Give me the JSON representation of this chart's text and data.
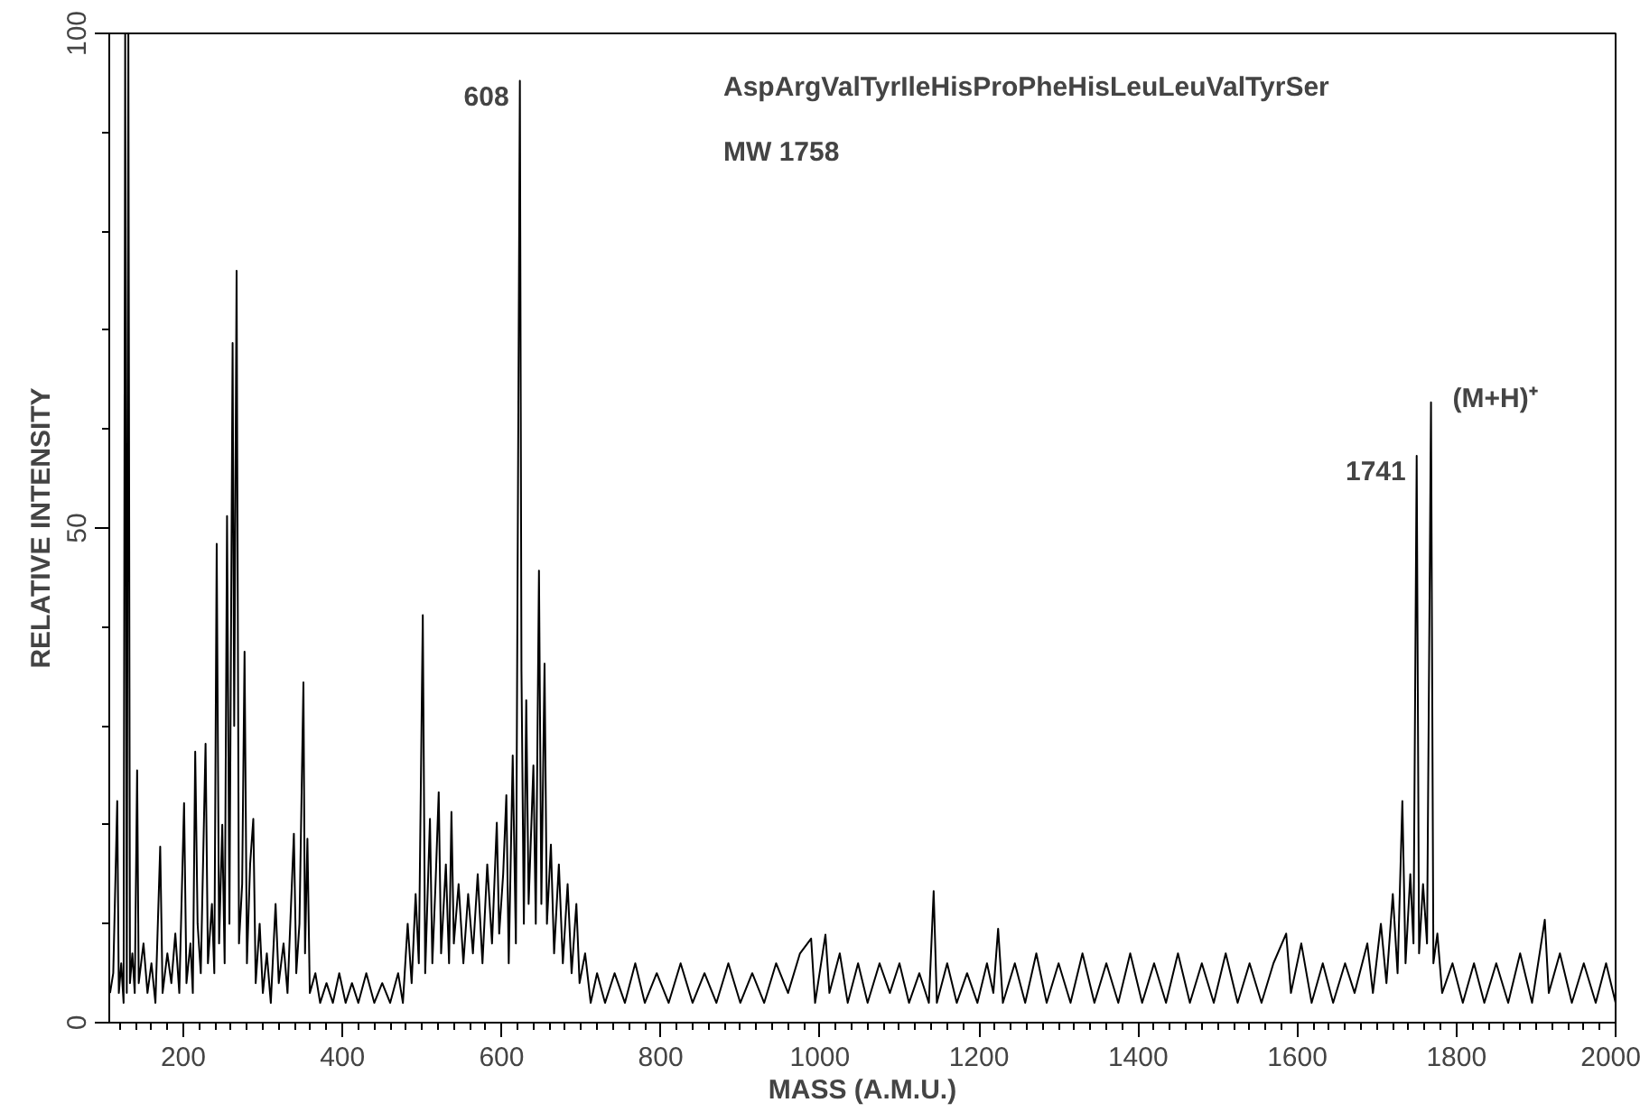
{
  "chart_data": {
    "type": "line",
    "title": "AspArgValTyrIleHisProPheHisLeuLeuValTyrSer",
    "xlabel": "MASS (A.M.U.)",
    "ylabel": "RELATIVE INTENSITY",
    "annotations": [
      "MW 1758",
      {
        "text": "608",
        "x": 623,
        "y": 95.2
      },
      {
        "text": "1741",
        "x": 1750,
        "y": 57.3
      },
      {
        "text": "(M+H)⁺",
        "x": 1768,
        "y": 62.7
      }
    ],
    "xlim": [
      107,
      2000
    ],
    "ylim": [
      0,
      100
    ],
    "xticks": [
      200,
      400,
      600,
      800,
      1000,
      1200,
      1400,
      1600,
      1800,
      2000
    ],
    "yticks": [
      0,
      50,
      100
    ],
    "grid": false,
    "marker": "none",
    "line_style": "solid",
    "series": [
      {
        "color": "#000000",
        "x": [
          108,
          112,
          117,
          119,
          122,
          125,
          127,
          129,
          131,
          133,
          136,
          139,
          142,
          144,
          150,
          155,
          160,
          165,
          171,
          174,
          180,
          185,
          190,
          195,
          201,
          204,
          209,
          212,
          215,
          218,
          222,
          228,
          231,
          236,
          239,
          242,
          245,
          249,
          252,
          255,
          258,
          262,
          264,
          267,
          270,
          274,
          277,
          280,
          284,
          288,
          291,
          296,
          300,
          305,
          310,
          316,
          320,
          326,
          331,
          339,
          342,
          346,
          351,
          353,
          356,
          359,
          366,
          372,
          380,
          388,
          396,
          404,
          412,
          420,
          430,
          440,
          450,
          460,
          470,
          476,
          482,
          487,
          492,
          496,
          501,
          504,
          510,
          513,
          517,
          521,
          524,
          530,
          534,
          537,
          540,
          546,
          552,
          558,
          564,
          570,
          576,
          582,
          588,
          594,
          597,
          602,
          606,
          609,
          614,
          618,
          623,
          625,
          628,
          631,
          634,
          640,
          643,
          647,
          650,
          654,
          657,
          662,
          666,
          672,
          677,
          683,
          688,
          694,
          698,
          705,
          712,
          720,
          730,
          742,
          755,
          768,
          780,
          795,
          810,
          825,
          840,
          855,
          870,
          885,
          900,
          915,
          930,
          945,
          960,
          975,
          989,
          994,
          1007,
          1012,
          1025,
          1035,
          1048,
          1060,
          1075,
          1088,
          1100,
          1112,
          1125,
          1137,
          1143,
          1147,
          1160,
          1172,
          1185,
          1198,
          1210,
          1218,
          1224,
          1230,
          1245,
          1258,
          1272,
          1285,
          1300,
          1315,
          1330,
          1345,
          1360,
          1375,
          1390,
          1405,
          1420,
          1435,
          1450,
          1465,
          1480,
          1495,
          1510,
          1525,
          1540,
          1555,
          1570,
          1586,
          1592,
          1605,
          1618,
          1632,
          1645,
          1660,
          1672,
          1688,
          1695,
          1705,
          1712,
          1720,
          1726,
          1732,
          1736,
          1742,
          1746,
          1750,
          1753,
          1758,
          1763,
          1768,
          1771,
          1776,
          1782,
          1795,
          1808,
          1822,
          1835,
          1850,
          1865,
          1880,
          1895,
          1911,
          1916,
          1930,
          1945,
          1960,
          1975,
          1988,
          2000
        ],
        "values": [
          3,
          5,
          22.4,
          3,
          6,
          2,
          100,
          3,
          100,
          4,
          7,
          3,
          25.5,
          4,
          8,
          3,
          6,
          2,
          17.8,
          3,
          7,
          4,
          9,
          3,
          22.2,
          4,
          8,
          3,
          27.4,
          10,
          5,
          28.2,
          6,
          12,
          5,
          48.4,
          8,
          20,
          6,
          51.2,
          10,
          68.7,
          30,
          76,
          8,
          14,
          37.5,
          6,
          16,
          20.6,
          4,
          10,
          3,
          7,
          2,
          12,
          4,
          8,
          3,
          19.1,
          5,
          10,
          34.4,
          7,
          18.6,
          3,
          5,
          2,
          4,
          2,
          5,
          2,
          4,
          2,
          5,
          2,
          4,
          2,
          5,
          2,
          10,
          4,
          13,
          6,
          41.2,
          5,
          20.6,
          6,
          14,
          23.3,
          7,
          16,
          6,
          21.3,
          8,
          14,
          6,
          13,
          7,
          15,
          6,
          16,
          8,
          20.2,
          9,
          15,
          23,
          6,
          27,
          8,
          95.2,
          35.5,
          10,
          32.6,
          12,
          26,
          10,
          45.7,
          12,
          36.3,
          10,
          18,
          7,
          16,
          6,
          14,
          5,
          12,
          4,
          7,
          2,
          5,
          2,
          5,
          2,
          6,
          2,
          5,
          2,
          6,
          2,
          5,
          2,
          6,
          2,
          5,
          2,
          6,
          3,
          7,
          8.5,
          2,
          8.9,
          3,
          7,
          2,
          6,
          2,
          6,
          3,
          6,
          2,
          5,
          2,
          13.3,
          2,
          6,
          2,
          5,
          2,
          6,
          3,
          9.5,
          2,
          6,
          2,
          7,
          2,
          6,
          2,
          7,
          2,
          6,
          2,
          7,
          2,
          6,
          2,
          7,
          2,
          6,
          2,
          7,
          2,
          6,
          2,
          6,
          9,
          3,
          8,
          2,
          6,
          2,
          6,
          3,
          8,
          3,
          10,
          4,
          13,
          5,
          22.4,
          6,
          15,
          8,
          57.3,
          7,
          14,
          8,
          62.7,
          6,
          9,
          3,
          6,
          2,
          6,
          2,
          6,
          2,
          7,
          2,
          10.4,
          3,
          7,
          2,
          6,
          2,
          6,
          2
        ]
      }
    ]
  }
}
